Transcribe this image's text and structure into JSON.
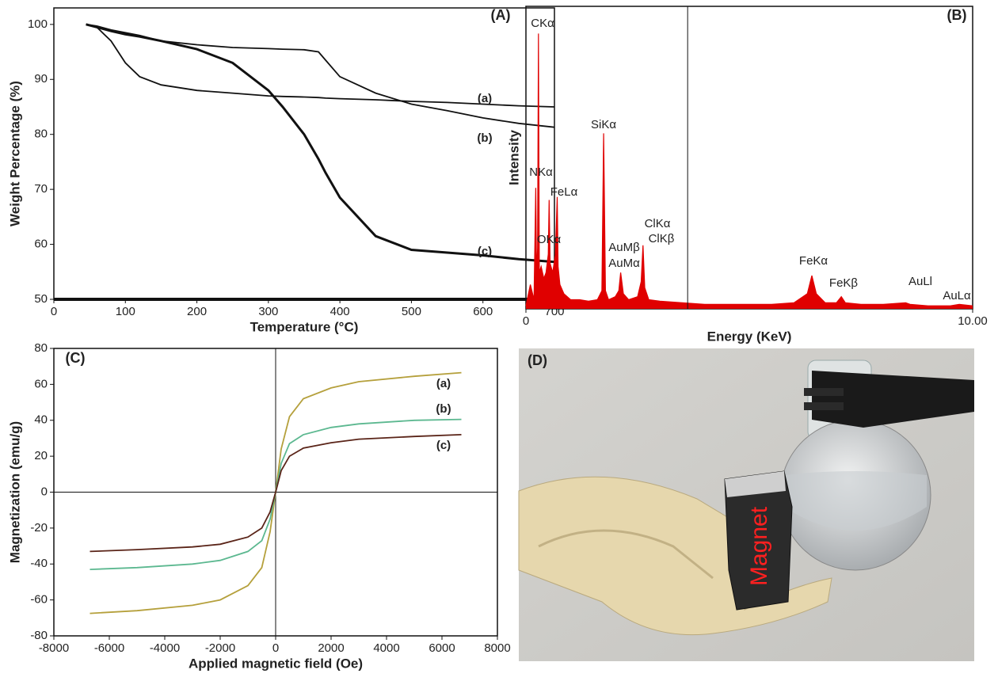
{
  "chart_data": [
    {
      "type": "line",
      "panel": "(A)",
      "x_label": "Temperature (°C)",
      "y_label": "Weight Percentage (%)",
      "x": [
        45,
        60,
        80,
        100,
        120,
        150,
        200,
        250,
        300,
        320,
        350,
        370,
        380,
        400,
        450,
        500,
        550,
        600,
        650,
        700
      ],
      "series": [
        {
          "name": "(a)",
          "color": "#111111",
          "values": [
            100,
            99.5,
            97,
            93,
            90.5,
            89,
            88,
            87.5,
            87,
            86.9,
            86.8,
            86.7,
            86.6,
            86.5,
            86.3,
            86,
            85.8,
            85.5,
            85.2,
            85
          ]
        },
        {
          "name": "(b)",
          "color": "#111111",
          "values": [
            100,
            99.7,
            99,
            98.5,
            98,
            97,
            96.3,
            95.8,
            95.6,
            95.5,
            95.4,
            95,
            93.5,
            90.5,
            87.5,
            85.5,
            84.3,
            83,
            82,
            81.3
          ]
        },
        {
          "name": "(c)",
          "color": "#111111",
          "values": [
            100,
            99.5,
            98.8,
            98.2,
            97.8,
            97,
            95.5,
            93,
            88,
            85,
            80,
            75.5,
            73,
            68.5,
            61.5,
            59,
            58.5,
            58,
            57.3,
            56.8
          ]
        }
      ],
      "xlim": [
        0,
        700
      ],
      "xticks": [
        0,
        100,
        200,
        300,
        400,
        500,
        600,
        700
      ],
      "ylim": [
        50,
        103
      ],
      "yticks": [
        50,
        60,
        70,
        80,
        90,
        100
      ]
    },
    {
      "type": "area",
      "panel": "(B)",
      "x_label": "Energy (KeV)",
      "y_label": "Intensity",
      "color": "#e00000",
      "x": [
        0,
        0.1,
        0.18,
        0.22,
        0.24,
        0.26,
        0.28,
        0.3,
        0.34,
        0.4,
        0.45,
        0.5,
        0.52,
        0.54,
        0.6,
        0.66,
        0.7,
        0.72,
        0.76,
        0.85,
        1.0,
        1.2,
        1.4,
        1.6,
        1.7,
        1.74,
        1.78,
        1.85,
        2.0,
        2.08,
        2.12,
        2.18,
        2.3,
        2.5,
        2.58,
        2.62,
        2.66,
        2.75,
        3.0,
        3.5,
        4.0,
        4.5,
        5.0,
        5.5,
        6.0,
        6.3,
        6.4,
        6.5,
        6.7,
        6.95,
        7.06,
        7.15,
        7.5,
        8.0,
        8.5,
        8.6,
        9.0,
        9.5,
        9.7,
        10.0
      ],
      "values": [
        1,
        8,
        3,
        40,
        10,
        20,
        91,
        12,
        14,
        10,
        12,
        18,
        36,
        15,
        12,
        18,
        37,
        14,
        8,
        5,
        3,
        3,
        2.5,
        3,
        6,
        58,
        6,
        3,
        4,
        6,
        12,
        5,
        3,
        4,
        9,
        21,
        7,
        3,
        2.5,
        2,
        1.5,
        1.5,
        1.5,
        1.5,
        2,
        5,
        11,
        5,
        2,
        2,
        4,
        2,
        1.5,
        1.5,
        2,
        1.5,
        1,
        1,
        1.5,
        1
      ],
      "annotations": [
        "CKα",
        "NKα",
        "FeLα",
        "OKα",
        "SiKα",
        "AuMβ",
        "AuMα",
        "ClKα",
        "ClKβ",
        "FeKα",
        "FeKβ",
        "AuLl",
        "AuLα"
      ],
      "vline": 3.62,
      "xlim": [
        0,
        10
      ],
      "xticks": [
        0,
        {
          "value": 10,
          "label": "10.00"
        }
      ],
      "ylim": [
        0,
        100
      ]
    },
    {
      "type": "line",
      "panel": "(C)",
      "x_label": "Applied magnetic field (Oe)",
      "y_label": "Magnetization (emu/g)",
      "zero_axes": true,
      "x": [
        -6700,
        -5000,
        -3000,
        -2000,
        -1000,
        -500,
        -200,
        0,
        200,
        500,
        1000,
        2000,
        3000,
        5000,
        6700
      ],
      "series": [
        {
          "name": "(a)",
          "color": "#b5a03c",
          "values": [
            -67.5,
            -66,
            -63,
            -60,
            -52,
            -42,
            -22,
            0,
            24,
            42,
            52,
            58,
            61.5,
            64.5,
            66.5
          ]
        },
        {
          "name": "(b)",
          "color": "#5cb890",
          "values": [
            -43,
            -42,
            -40,
            -38,
            -33,
            -27,
            -15,
            0,
            16,
            27,
            32,
            36,
            38,
            40,
            40.5
          ]
        },
        {
          "name": "(c)",
          "color": "#5a2418",
          "values": [
            -33,
            -32,
            -30.5,
            -29,
            -25,
            -20,
            -11,
            0,
            12,
            20,
            24.5,
            27.5,
            29.5,
            31,
            32
          ]
        }
      ],
      "xlim": [
        -8000,
        8000
      ],
      "xticks": [
        -8000,
        -6000,
        -4000,
        -2000,
        0,
        2000,
        4000,
        6000,
        8000
      ],
      "ylim": [
        -80,
        80
      ],
      "yticks": [
        -80,
        -60,
        -40,
        -20,
        0,
        20,
        40,
        60,
        80
      ]
    }
  ],
  "photo": {
    "panel": "(D)",
    "magnet_text": "Magnet"
  }
}
